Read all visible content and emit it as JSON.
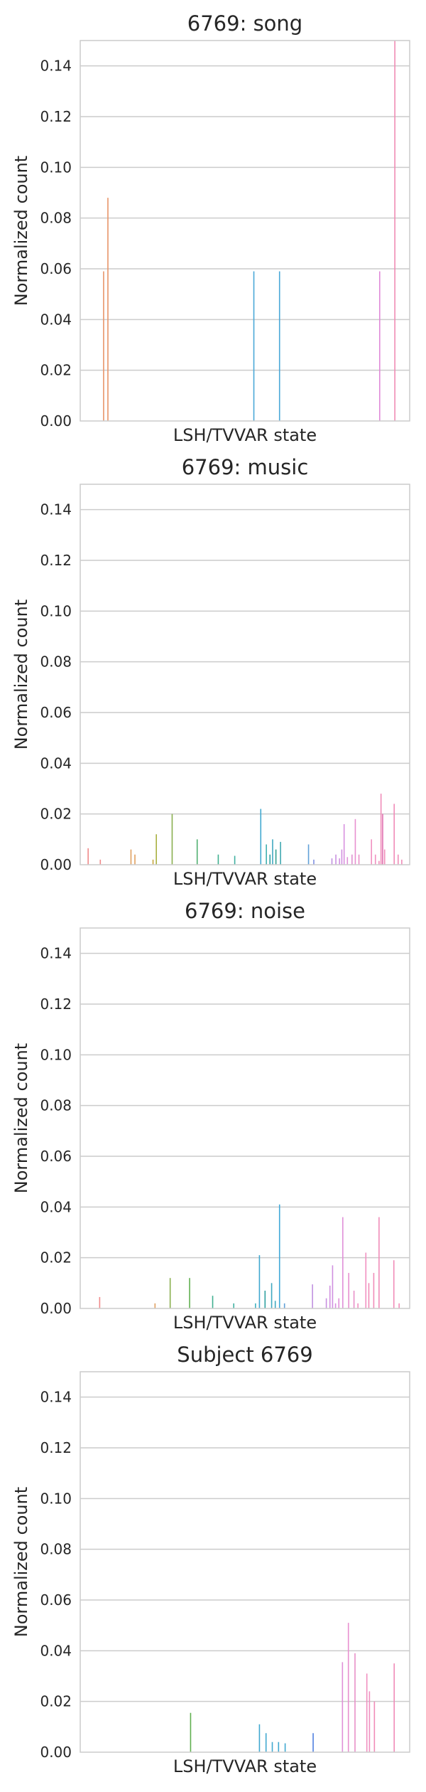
{
  "chart_data": [
    {
      "type": "bar",
      "title": "6769: song",
      "xlabel": "LSH/TVVAR state",
      "ylabel": "Normalized count",
      "ylim": [
        0,
        0.15
      ],
      "yticks": [
        "0.00",
        "0.02",
        "0.04",
        "0.06",
        "0.08",
        "0.10",
        "0.12",
        "0.14"
      ],
      "grid": true,
      "x_domain": [
        0,
        100
      ],
      "bars": [
        {
          "x": 7.1,
          "value": 0.059,
          "color": "#e8956a"
        },
        {
          "x": 8.4,
          "value": 0.088,
          "color": "#e8956a"
        },
        {
          "x": 52.7,
          "value": 0.059,
          "color": "#4aa8d8"
        },
        {
          "x": 60.5,
          "value": 0.059,
          "color": "#4aa8d8"
        },
        {
          "x": 90.9,
          "value": 0.059,
          "color": "#e08ad8"
        },
        {
          "x": 95.5,
          "value": 0.15,
          "color": "#f08bb5"
        }
      ]
    },
    {
      "type": "bar",
      "title": "6769: music",
      "xlabel": "LSH/TVVAR state",
      "ylabel": "Normalized count",
      "ylim": [
        0,
        0.15
      ],
      "yticks": [
        "0.00",
        "0.02",
        "0.04",
        "0.06",
        "0.08",
        "0.10",
        "0.12",
        "0.14"
      ],
      "grid": true,
      "x_domain": [
        0,
        100
      ],
      "bars": [
        {
          "x": 2.4,
          "value": 0.0065,
          "color": "#f08a8a"
        },
        {
          "x": 6.1,
          "value": 0.002,
          "color": "#f08a8a"
        },
        {
          "x": 15.4,
          "value": 0.006,
          "color": "#e0a060"
        },
        {
          "x": 16.6,
          "value": 0.004,
          "color": "#e0a060"
        },
        {
          "x": 22.1,
          "value": 0.002,
          "color": "#c8a640"
        },
        {
          "x": 23.1,
          "value": 0.012,
          "color": "#a8b040"
        },
        {
          "x": 27.9,
          "value": 0.02,
          "color": "#8ab050"
        },
        {
          "x": 35.5,
          "value": 0.01,
          "color": "#50b070"
        },
        {
          "x": 41.9,
          "value": 0.004,
          "color": "#40b090"
        },
        {
          "x": 46.9,
          "value": 0.0035,
          "color": "#40b0a0"
        },
        {
          "x": 54.8,
          "value": 0.022,
          "color": "#40a8d0"
        },
        {
          "x": 56.5,
          "value": 0.008,
          "color": "#40b0b0"
        },
        {
          "x": 57.6,
          "value": 0.004,
          "color": "#30a0a0"
        },
        {
          "x": 58.4,
          "value": 0.01,
          "color": "#40a8c0"
        },
        {
          "x": 59.4,
          "value": 0.006,
          "color": "#30a090"
        },
        {
          "x": 60.8,
          "value": 0.009,
          "color": "#40a8b0"
        },
        {
          "x": 69.3,
          "value": 0.008,
          "color": "#60a0d8"
        },
        {
          "x": 70.9,
          "value": 0.002,
          "color": "#8090e0"
        },
        {
          "x": 76.4,
          "value": 0.0025,
          "color": "#c090e0"
        },
        {
          "x": 77.6,
          "value": 0.004,
          "color": "#c890e0"
        },
        {
          "x": 78.7,
          "value": 0.0025,
          "color": "#d090e0"
        },
        {
          "x": 79.4,
          "value": 0.006,
          "color": "#d090e0"
        },
        {
          "x": 80.1,
          "value": 0.016,
          "color": "#d890e0"
        },
        {
          "x": 81.1,
          "value": 0.003,
          "color": "#e090d8"
        },
        {
          "x": 82.5,
          "value": 0.004,
          "color": "#e090d0"
        },
        {
          "x": 83.5,
          "value": 0.018,
          "color": "#e890d0"
        },
        {
          "x": 84.6,
          "value": 0.004,
          "color": "#e890c8"
        },
        {
          "x": 88.4,
          "value": 0.01,
          "color": "#f090c0"
        },
        {
          "x": 89.6,
          "value": 0.004,
          "color": "#f090c0"
        },
        {
          "x": 90.7,
          "value": 0.0015,
          "color": "#f08cb8"
        },
        {
          "x": 91.3,
          "value": 0.028,
          "color": "#f08cb8"
        },
        {
          "x": 91.8,
          "value": 0.02,
          "color": "#e070b0"
        },
        {
          "x": 92.4,
          "value": 0.006,
          "color": "#f08cb8"
        },
        {
          "x": 95.3,
          "value": 0.024,
          "color": "#f08cb8"
        },
        {
          "x": 96.5,
          "value": 0.004,
          "color": "#f08cb8"
        },
        {
          "x": 97.6,
          "value": 0.002,
          "color": "#f08cb8"
        }
      ]
    },
    {
      "type": "bar",
      "title": "6769: noise",
      "xlabel": "LSH/TVVAR state",
      "ylabel": "Normalized count",
      "ylim": [
        0,
        0.15
      ],
      "yticks": [
        "0.00",
        "0.02",
        "0.04",
        "0.06",
        "0.08",
        "0.10",
        "0.12",
        "0.14"
      ],
      "grid": true,
      "x_domain": [
        0,
        100
      ],
      "bars": [
        {
          "x": 5.9,
          "value": 0.0045,
          "color": "#f08a8a"
        },
        {
          "x": 22.7,
          "value": 0.002,
          "color": "#e0a060"
        },
        {
          "x": 27.3,
          "value": 0.012,
          "color": "#8ab050"
        },
        {
          "x": 33.2,
          "value": 0.012,
          "color": "#60b050"
        },
        {
          "x": 40.2,
          "value": 0.005,
          "color": "#40b090"
        },
        {
          "x": 46.6,
          "value": 0.002,
          "color": "#40b0a0"
        },
        {
          "x": 53.2,
          "value": 0.002,
          "color": "#40b0c0"
        },
        {
          "x": 54.4,
          "value": 0.021,
          "color": "#40a8d0"
        },
        {
          "x": 56.1,
          "value": 0.007,
          "color": "#30a0a0"
        },
        {
          "x": 58.1,
          "value": 0.01,
          "color": "#40a8c0"
        },
        {
          "x": 59.2,
          "value": 0.003,
          "color": "#40a8c0"
        },
        {
          "x": 60.5,
          "value": 0.041,
          "color": "#40a8d8"
        },
        {
          "x": 62.0,
          "value": 0.002,
          "color": "#60a0d8"
        },
        {
          "x": 70.5,
          "value": 0.0095,
          "color": "#c090e0"
        },
        {
          "x": 74.7,
          "value": 0.004,
          "color": "#c890e0"
        },
        {
          "x": 75.8,
          "value": 0.009,
          "color": "#d090e0"
        },
        {
          "x": 76.6,
          "value": 0.017,
          "color": "#d090e0"
        },
        {
          "x": 77.5,
          "value": 0.002,
          "color": "#d890e0"
        },
        {
          "x": 78.5,
          "value": 0.004,
          "color": "#e090d8"
        },
        {
          "x": 79.7,
          "value": 0.036,
          "color": "#e090d8"
        },
        {
          "x": 81.5,
          "value": 0.014,
          "color": "#e890d0"
        },
        {
          "x": 83.1,
          "value": 0.007,
          "color": "#e890c8"
        },
        {
          "x": 84.3,
          "value": 0.002,
          "color": "#f090c0"
        },
        {
          "x": 86.7,
          "value": 0.022,
          "color": "#f090c0"
        },
        {
          "x": 87.6,
          "value": 0.01,
          "color": "#f08cb8"
        },
        {
          "x": 89.1,
          "value": 0.014,
          "color": "#f08cb8"
        },
        {
          "x": 90.7,
          "value": 0.036,
          "color": "#f08cb8"
        },
        {
          "x": 95.2,
          "value": 0.019,
          "color": "#f08cb8"
        },
        {
          "x": 96.8,
          "value": 0.002,
          "color": "#f08cb8"
        }
      ]
    },
    {
      "type": "bar",
      "title": "Subject 6769",
      "xlabel": "LSH/TVVAR state",
      "ylabel": "Normalized count",
      "ylim": [
        0,
        0.15
      ],
      "yticks": [
        "0.00",
        "0.02",
        "0.04",
        "0.06",
        "0.08",
        "0.10",
        "0.12",
        "0.14"
      ],
      "grid": true,
      "x_domain": [
        0,
        100
      ],
      "bars": [
        {
          "x": 33.5,
          "value": 0.0155,
          "color": "#60b050"
        },
        {
          "x": 54.4,
          "value": 0.011,
          "color": "#40a8d0"
        },
        {
          "x": 56.4,
          "value": 0.0075,
          "color": "#40a8d0"
        },
        {
          "x": 58.3,
          "value": 0.004,
          "color": "#40a8d0"
        },
        {
          "x": 60.2,
          "value": 0.004,
          "color": "#40a8d0"
        },
        {
          "x": 62.2,
          "value": 0.0035,
          "color": "#40a8d0"
        },
        {
          "x": 70.7,
          "value": 0.0075,
          "color": "#5080e0"
        },
        {
          "x": 79.6,
          "value": 0.0355,
          "color": "#e090d8"
        },
        {
          "x": 81.4,
          "value": 0.051,
          "color": "#e890d0"
        },
        {
          "x": 83.4,
          "value": 0.039,
          "color": "#e890c8"
        },
        {
          "x": 87.0,
          "value": 0.031,
          "color": "#f090c0"
        },
        {
          "x": 87.8,
          "value": 0.024,
          "color": "#f090c0"
        },
        {
          "x": 89.3,
          "value": 0.02,
          "color": "#f08cb8"
        },
        {
          "x": 95.3,
          "value": 0.035,
          "color": "#f08cb8"
        }
      ]
    }
  ]
}
